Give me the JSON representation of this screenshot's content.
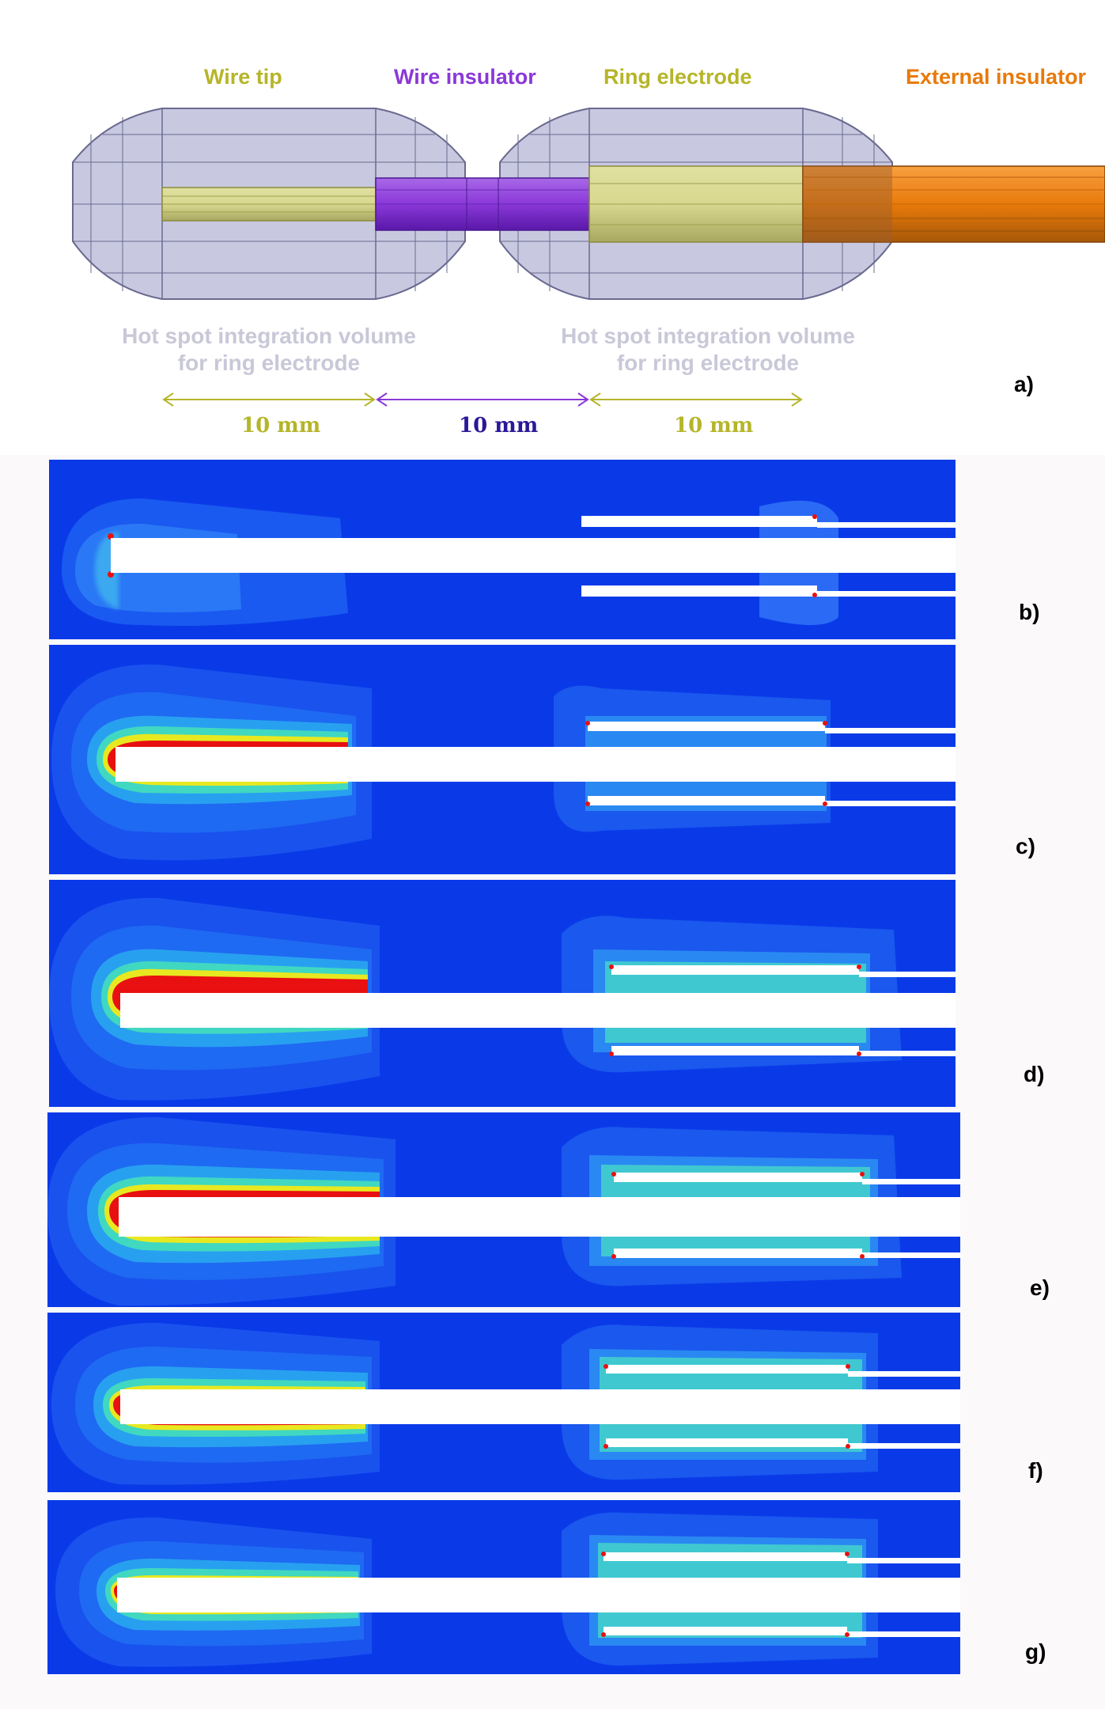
{
  "top_labels": {
    "wire_tip": "Wire tip",
    "wire_insulator": "Wire insulator",
    "ring_electrode": "Ring electrode",
    "external_insulator": "External insulator"
  },
  "hot_spot": {
    "left_line1": "Hot spot integration volume",
    "left_line2": "for ring electrode",
    "right_line1": "Hot spot integration volume",
    "right_line2": "for ring electrode"
  },
  "dimensions": {
    "left": "10 mm",
    "middle": "10 mm",
    "right": "10 mm"
  },
  "panel_labels": {
    "a": "a)",
    "b": "b)",
    "c": "c)",
    "d": "d)",
    "e": "e)",
    "f": "f)",
    "g": "g)"
  },
  "colors": {
    "wire_tip": "#b5b529",
    "wire_insulator": "#8a38d8",
    "ring_electrode": "#b5b529",
    "external_insulator": "#e87a0a",
    "field_background": "#0a3ae8",
    "hot": "#e81010"
  }
}
